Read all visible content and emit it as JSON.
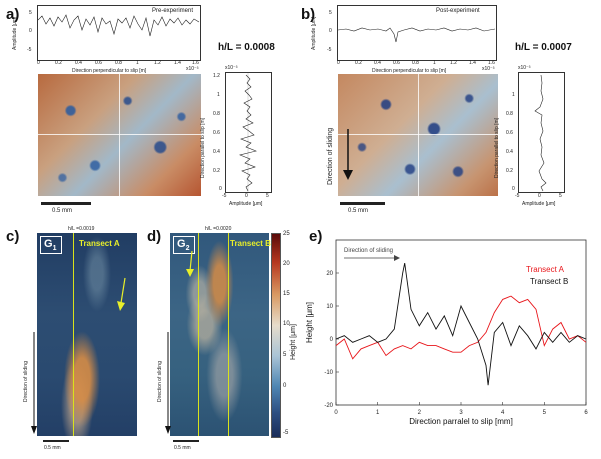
{
  "panels": {
    "a": {
      "label": "a)",
      "profile_title": "Pre-experiment",
      "x_label": "Direction perpendicular to slip [m]",
      "x_exp": "x10⁻³",
      "x_ticks": [
        "0",
        "0.2",
        "0.4",
        "0.6",
        "0.8",
        "1",
        "1.2",
        "1.4",
        "1.6"
      ],
      "y_label": "Amplitude [μm]",
      "y_ticks": [
        "5",
        "0",
        "-5"
      ],
      "hl": "h/L = 0.0008",
      "side_y_label": "Direction parallel to slip [m]",
      "side_x_label": "Amplitude [μm]",
      "side_exp": "x10⁻³",
      "side_y_ticks": [
        "1.2",
        "1",
        "0.8",
        "0.6",
        "0.4",
        "0.2",
        "0"
      ],
      "side_x_ticks": [
        "-5",
        "0",
        "5"
      ],
      "scale": "0.5 mm"
    },
    "b": {
      "label": "b)",
      "profile_title": "Post-experiment",
      "x_label": "Direction perpendicular to slip [m]",
      "x_exp": "x10⁻³",
      "x_ticks": [
        "0",
        "0.2",
        "0.4",
        "0.6",
        "0.8",
        "1",
        "1.2",
        "1.4",
        "1.6"
      ],
      "y_label": "Amplitude [μm]",
      "y_ticks": [
        "5",
        "0",
        "-5"
      ],
      "hl": "h/L = 0.0007",
      "side_y_label": "Direction parallel to slip [m]",
      "side_x_label": "Amplitude [μm]",
      "side_exp": "x10⁻³",
      "side_y_ticks": [
        "1",
        "0.8",
        "0.6",
        "0.4",
        "0.2",
        "0"
      ],
      "side_x_ticks": [
        "-5",
        "0",
        "5"
      ],
      "sliding": "Direction of sliding",
      "scale": "0.5 mm"
    },
    "c": {
      "label": "c)",
      "g_label": "G",
      "g_sub": "1",
      "hl": "h/L =0.0019",
      "transect": "Transect A",
      "sliding": "Direction of sliding",
      "scale": "0.5 mm"
    },
    "d": {
      "label": "d)",
      "g_label": "G",
      "g_sub": "2",
      "hl": "h/L =0.0020",
      "transect": "Transect B",
      "sliding": "Direction of sliding",
      "scale": "0.5 mm",
      "colorbar_label": "Height [μm]",
      "colorbar_ticks": [
        "25",
        "20",
        "15",
        "10",
        "5",
        "0",
        "-5"
      ]
    },
    "e": {
      "label": "e)",
      "sliding": "Direction of sliding",
      "legend_a": "Transect A",
      "legend_b": "Transect B"
    }
  },
  "colors": {
    "transect_a": "#e8161b",
    "transect_b": "#111111",
    "transect_line": "#d9e21a"
  },
  "chart_data": {
    "type": "line",
    "xlabel": "Direction parralel to slip [mm]",
    "ylabel": "Height [μm]",
    "xlim": [
      0,
      6
    ],
    "ylim": [
      -20,
      30
    ],
    "x_ticks": [
      "0",
      "1",
      "2",
      "3",
      "4",
      "5",
      "6"
    ],
    "y_ticks": [
      "-20",
      "-10",
      "0",
      "10",
      "20"
    ],
    "grid": false,
    "legend": "top-right",
    "series": [
      {
        "name": "Transect A",
        "color": "#e8161b",
        "x": [
          0,
          0.2,
          0.4,
          0.6,
          0.8,
          1.0,
          1.2,
          1.4,
          1.6,
          1.8,
          2.0,
          2.2,
          2.4,
          2.6,
          2.8,
          3.0,
          3.2,
          3.4,
          3.6,
          3.8,
          4.0,
          4.2,
          4.4,
          4.6,
          4.8,
          5.0,
          5.2,
          5.4,
          5.6,
          5.8,
          6.0
        ],
        "y": [
          -2,
          0,
          -6,
          -3,
          -2,
          -1,
          -5,
          -3,
          -2,
          -3,
          -1,
          -2,
          -2,
          -3,
          -4,
          -4,
          -2,
          -1,
          2,
          8,
          12,
          13,
          11,
          12,
          9,
          -2,
          3,
          5,
          0,
          1,
          -1
        ]
      },
      {
        "name": "Transect B",
        "color": "#111111",
        "x": [
          0,
          0.2,
          0.4,
          0.6,
          0.8,
          1.0,
          1.2,
          1.4,
          1.6,
          1.65,
          1.8,
          2.0,
          2.2,
          2.4,
          2.6,
          2.8,
          3.0,
          3.2,
          3.4,
          3.6,
          3.65,
          3.8,
          4.0,
          4.2,
          4.4,
          4.6,
          4.8,
          5.0,
          5.2,
          5.4,
          5.6,
          5.8,
          6.0
        ],
        "y": [
          0,
          1,
          -1,
          0,
          1,
          -1,
          0,
          3,
          20,
          23,
          9,
          4,
          8,
          3,
          7,
          1,
          10,
          5,
          0,
          -8,
          -14,
          2,
          5,
          -2,
          4,
          1,
          -3,
          2,
          -1,
          2,
          -1,
          1,
          0
        ]
      }
    ]
  }
}
